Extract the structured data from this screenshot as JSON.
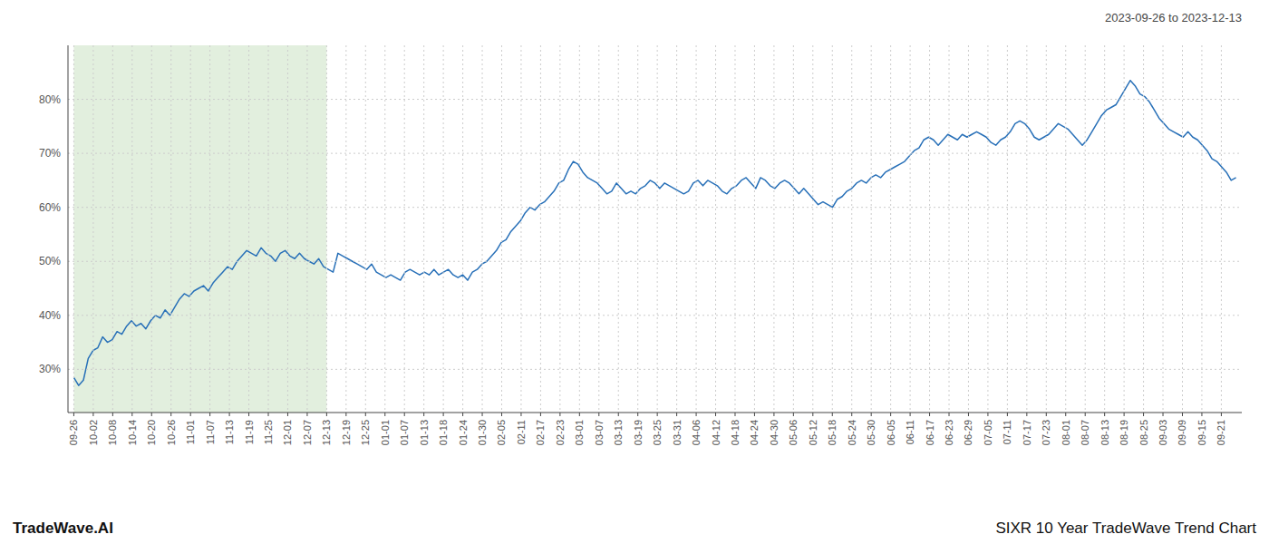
{
  "chart_data": {
    "type": "line",
    "title": "2023-09-26 to 2023-12-13",
    "footer_left": "TradeWave.AI",
    "footer_right": "SIXR 10 Year TradeWave Trend Chart",
    "color": "#2870b8",
    "grid": true,
    "shaded": {
      "from": "09-26",
      "to": "12-13",
      "color": "#d6e8d0"
    },
    "ylim": [
      22,
      90
    ],
    "yticks": [
      {
        "value": 30,
        "label": "30%"
      },
      {
        "value": 40,
        "label": "40%"
      },
      {
        "value": 50,
        "label": "50%"
      },
      {
        "value": 60,
        "label": "60%"
      },
      {
        "value": 70,
        "label": "70%"
      },
      {
        "value": 80,
        "label": "80%"
      }
    ],
    "xlim": [
      -1.215,
      243.215
    ],
    "xticks": [
      {
        "value": 0,
        "label": "09-26"
      },
      {
        "value": 4.05,
        "label": "10-02"
      },
      {
        "value": 8.1,
        "label": "10-08"
      },
      {
        "value": 12.15,
        "label": "10-14"
      },
      {
        "value": 16.2,
        "label": "10-20"
      },
      {
        "value": 20.25,
        "label": "10-26"
      },
      {
        "value": 24.3,
        "label": "11-01"
      },
      {
        "value": 28.35,
        "label": "11-07"
      },
      {
        "value": 32.4,
        "label": "11-13"
      },
      {
        "value": 36.45,
        "label": "11-19"
      },
      {
        "value": 40.5,
        "label": "11-25"
      },
      {
        "value": 44.55,
        "label": "12-01"
      },
      {
        "value": 48.6,
        "label": "12-07"
      },
      {
        "value": 52.65,
        "label": "12-13"
      },
      {
        "value": 56.7,
        "label": "12-19"
      },
      {
        "value": 60.75,
        "label": "12-25"
      },
      {
        "value": 64.8,
        "label": "01-01"
      },
      {
        "value": 68.85,
        "label": "01-07"
      },
      {
        "value": 72.9,
        "label": "01-13"
      },
      {
        "value": 76.95,
        "label": "01-18"
      },
      {
        "value": 81,
        "label": "01-24"
      },
      {
        "value": 85.05,
        "label": "01-30"
      },
      {
        "value": 89.1,
        "label": "02-05"
      },
      {
        "value": 93.15,
        "label": "02-11"
      },
      {
        "value": 97.2,
        "label": "02-17"
      },
      {
        "value": 101.25,
        "label": "02-23"
      },
      {
        "value": 105.3,
        "label": "03-01"
      },
      {
        "value": 109.35,
        "label": "03-07"
      },
      {
        "value": 113.4,
        "label": "03-13"
      },
      {
        "value": 117.45,
        "label": "03-19"
      },
      {
        "value": 121.5,
        "label": "03-25"
      },
      {
        "value": 125.55,
        "label": "03-31"
      },
      {
        "value": 129.6,
        "label": "04-06"
      },
      {
        "value": 133.65,
        "label": "04-12"
      },
      {
        "value": 137.7,
        "label": "04-18"
      },
      {
        "value": 141.75,
        "label": "04-24"
      },
      {
        "value": 145.8,
        "label": "04-30"
      },
      {
        "value": 149.85,
        "label": "05-06"
      },
      {
        "value": 153.9,
        "label": "05-12"
      },
      {
        "value": 157.95,
        "label": "05-18"
      },
      {
        "value": 162,
        "label": "05-24"
      },
      {
        "value": 166.05,
        "label": "05-30"
      },
      {
        "value": 170.1,
        "label": "06-05"
      },
      {
        "value": 174.15,
        "label": "06-11"
      },
      {
        "value": 178.2,
        "label": "06-17"
      },
      {
        "value": 182.25,
        "label": "06-23"
      },
      {
        "value": 186.3,
        "label": "06-29"
      },
      {
        "value": 190.35,
        "label": "07-05"
      },
      {
        "value": 194.4,
        "label": "07-11"
      },
      {
        "value": 198.45,
        "label": "07-17"
      },
      {
        "value": 202.5,
        "label": "07-23"
      },
      {
        "value": 206.55,
        "label": "08-01"
      },
      {
        "value": 210.6,
        "label": "08-07"
      },
      {
        "value": 214.65,
        "label": "08-13"
      },
      {
        "value": 218.7,
        "label": "08-19"
      },
      {
        "value": 222.75,
        "label": "08-25"
      },
      {
        "value": 226.8,
        "label": "09-03"
      },
      {
        "value": 230.85,
        "label": "09-09"
      },
      {
        "value": 234.9,
        "label": "09-15"
      },
      {
        "value": 238.95,
        "label": "09-21"
      }
    ],
    "values": [
      28.5,
      27.0,
      28.0,
      32.0,
      33.5,
      34.0,
      36.0,
      35.0,
      35.5,
      37.0,
      36.5,
      38.0,
      39.0,
      38.0,
      38.5,
      37.5,
      39.0,
      40.0,
      39.5,
      41.0,
      40.0,
      41.5,
      43.0,
      44.0,
      43.5,
      44.5,
      45.0,
      45.5,
      44.5,
      46.0,
      47.0,
      48.0,
      49.0,
      48.5,
      50.0,
      51.0,
      52.0,
      51.5,
      51.0,
      52.5,
      51.5,
      51.0,
      50.0,
      51.5,
      52.0,
      51.0,
      50.5,
      51.5,
      50.5,
      50.0,
      49.5,
      50.5,
      49.0,
      48.5,
      48.0,
      51.5,
      51.0,
      50.5,
      50.0,
      49.5,
      49.0,
      48.5,
      49.5,
      48.0,
      47.5,
      47.0,
      47.5,
      47.0,
      46.5,
      48.0,
      48.5,
      48.0,
      47.5,
      48.0,
      47.5,
      48.5,
      47.5,
      48.0,
      48.5,
      47.5,
      47.0,
      47.5,
      46.5,
      48.0,
      48.5,
      49.5,
      50.0,
      51.0,
      52.0,
      53.5,
      54.0,
      55.5,
      56.5,
      57.5,
      59.0,
      60.0,
      59.5,
      60.5,
      61.0,
      62.0,
      63.0,
      64.5,
      65.0,
      67.0,
      68.5,
      68.0,
      66.5,
      65.5,
      65.0,
      64.5,
      63.5,
      62.5,
      63.0,
      64.5,
      63.5,
      62.5,
      63.0,
      62.5,
      63.5,
      64.0,
      65.0,
      64.5,
      63.5,
      64.5,
      64.0,
      63.5,
      63.0,
      62.5,
      63.0,
      64.5,
      65.0,
      64.0,
      65.0,
      64.5,
      64.0,
      63.0,
      62.5,
      63.5,
      64.0,
      65.0,
      65.5,
      64.5,
      63.5,
      65.5,
      65.0,
      64.0,
      63.5,
      64.5,
      65.0,
      64.5,
      63.5,
      62.5,
      63.5,
      62.5,
      61.5,
      60.5,
      61.0,
      60.5,
      60.0,
      61.5,
      62.0,
      63.0,
      63.5,
      64.5,
      65.0,
      64.5,
      65.5,
      66.0,
      65.5,
      66.5,
      67.0,
      67.5,
      68.0,
      68.5,
      69.5,
      70.5,
      71.0,
      72.5,
      73.0,
      72.5,
      71.5,
      72.5,
      73.5,
      73.0,
      72.5,
      73.5,
      73.0,
      73.5,
      74.0,
      73.5,
      73.0,
      72.0,
      71.5,
      72.5,
      73.0,
      74.0,
      75.5,
      76.0,
      75.5,
      74.5,
      73.0,
      72.5,
      73.0,
      73.5,
      74.5,
      75.5,
      75.0,
      74.5,
      73.5,
      72.5,
      71.5,
      72.5,
      74.0,
      75.5,
      77.0,
      78.0,
      78.5,
      79.0,
      80.5,
      82.0,
      83.5,
      82.5,
      81.0,
      80.5,
      79.5,
      78.0,
      76.5,
      75.5,
      74.5,
      74.0,
      73.5,
      73.0,
      74.0,
      73.0,
      72.5,
      71.5,
      70.5,
      69.0,
      68.5,
      67.5,
      66.5,
      65.0,
      65.5
    ]
  }
}
